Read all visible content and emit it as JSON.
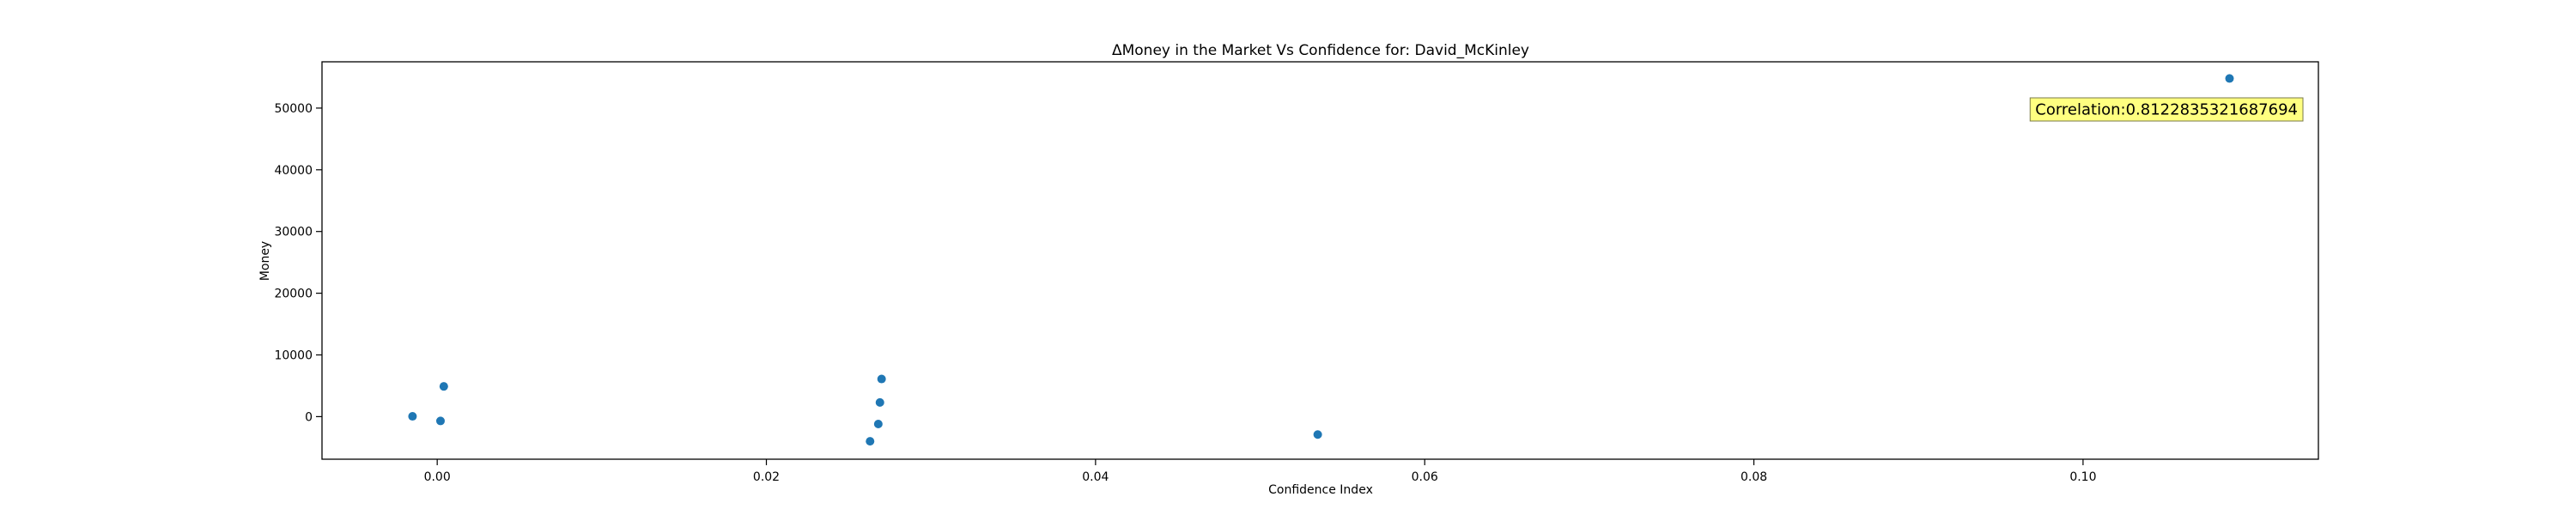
{
  "chart_data": {
    "type": "scatter",
    "title": "ΔMoney in the Market Vs Confidence for: David_McKinley",
    "xlabel": "Confidence Index",
    "ylabel": "Money",
    "xlim": [
      -0.007,
      0.1143
    ],
    "ylim": [
      -6900,
      57500
    ],
    "xticks": [
      0.0,
      0.02,
      0.04,
      0.06,
      0.08,
      0.1
    ],
    "xtick_labels": [
      "0.00",
      "0.02",
      "0.04",
      "0.06",
      "0.08",
      "0.10"
    ],
    "yticks": [
      0,
      10000,
      20000,
      30000,
      40000,
      50000
    ],
    "ytick_labels": [
      "0",
      "10000",
      "20000",
      "30000",
      "40000",
      "50000"
    ],
    "grid": false,
    "point_color": "#1f77b4",
    "points": [
      {
        "x": -0.0015,
        "y": 50
      },
      {
        "x": 0.0002,
        "y": -700
      },
      {
        "x": 0.0004,
        "y": 4900
      },
      {
        "x": 0.0263,
        "y": -4000
      },
      {
        "x": 0.0268,
        "y": -1200
      },
      {
        "x": 0.0269,
        "y": 2300
      },
      {
        "x": 0.027,
        "y": 6100
      },
      {
        "x": 0.0535,
        "y": -2900
      },
      {
        "x": 0.1089,
        "y": 54800
      }
    ],
    "annotation": {
      "text": "Correlation:0.8122835321687694",
      "background": "#ffff80",
      "position": "top-right"
    }
  }
}
